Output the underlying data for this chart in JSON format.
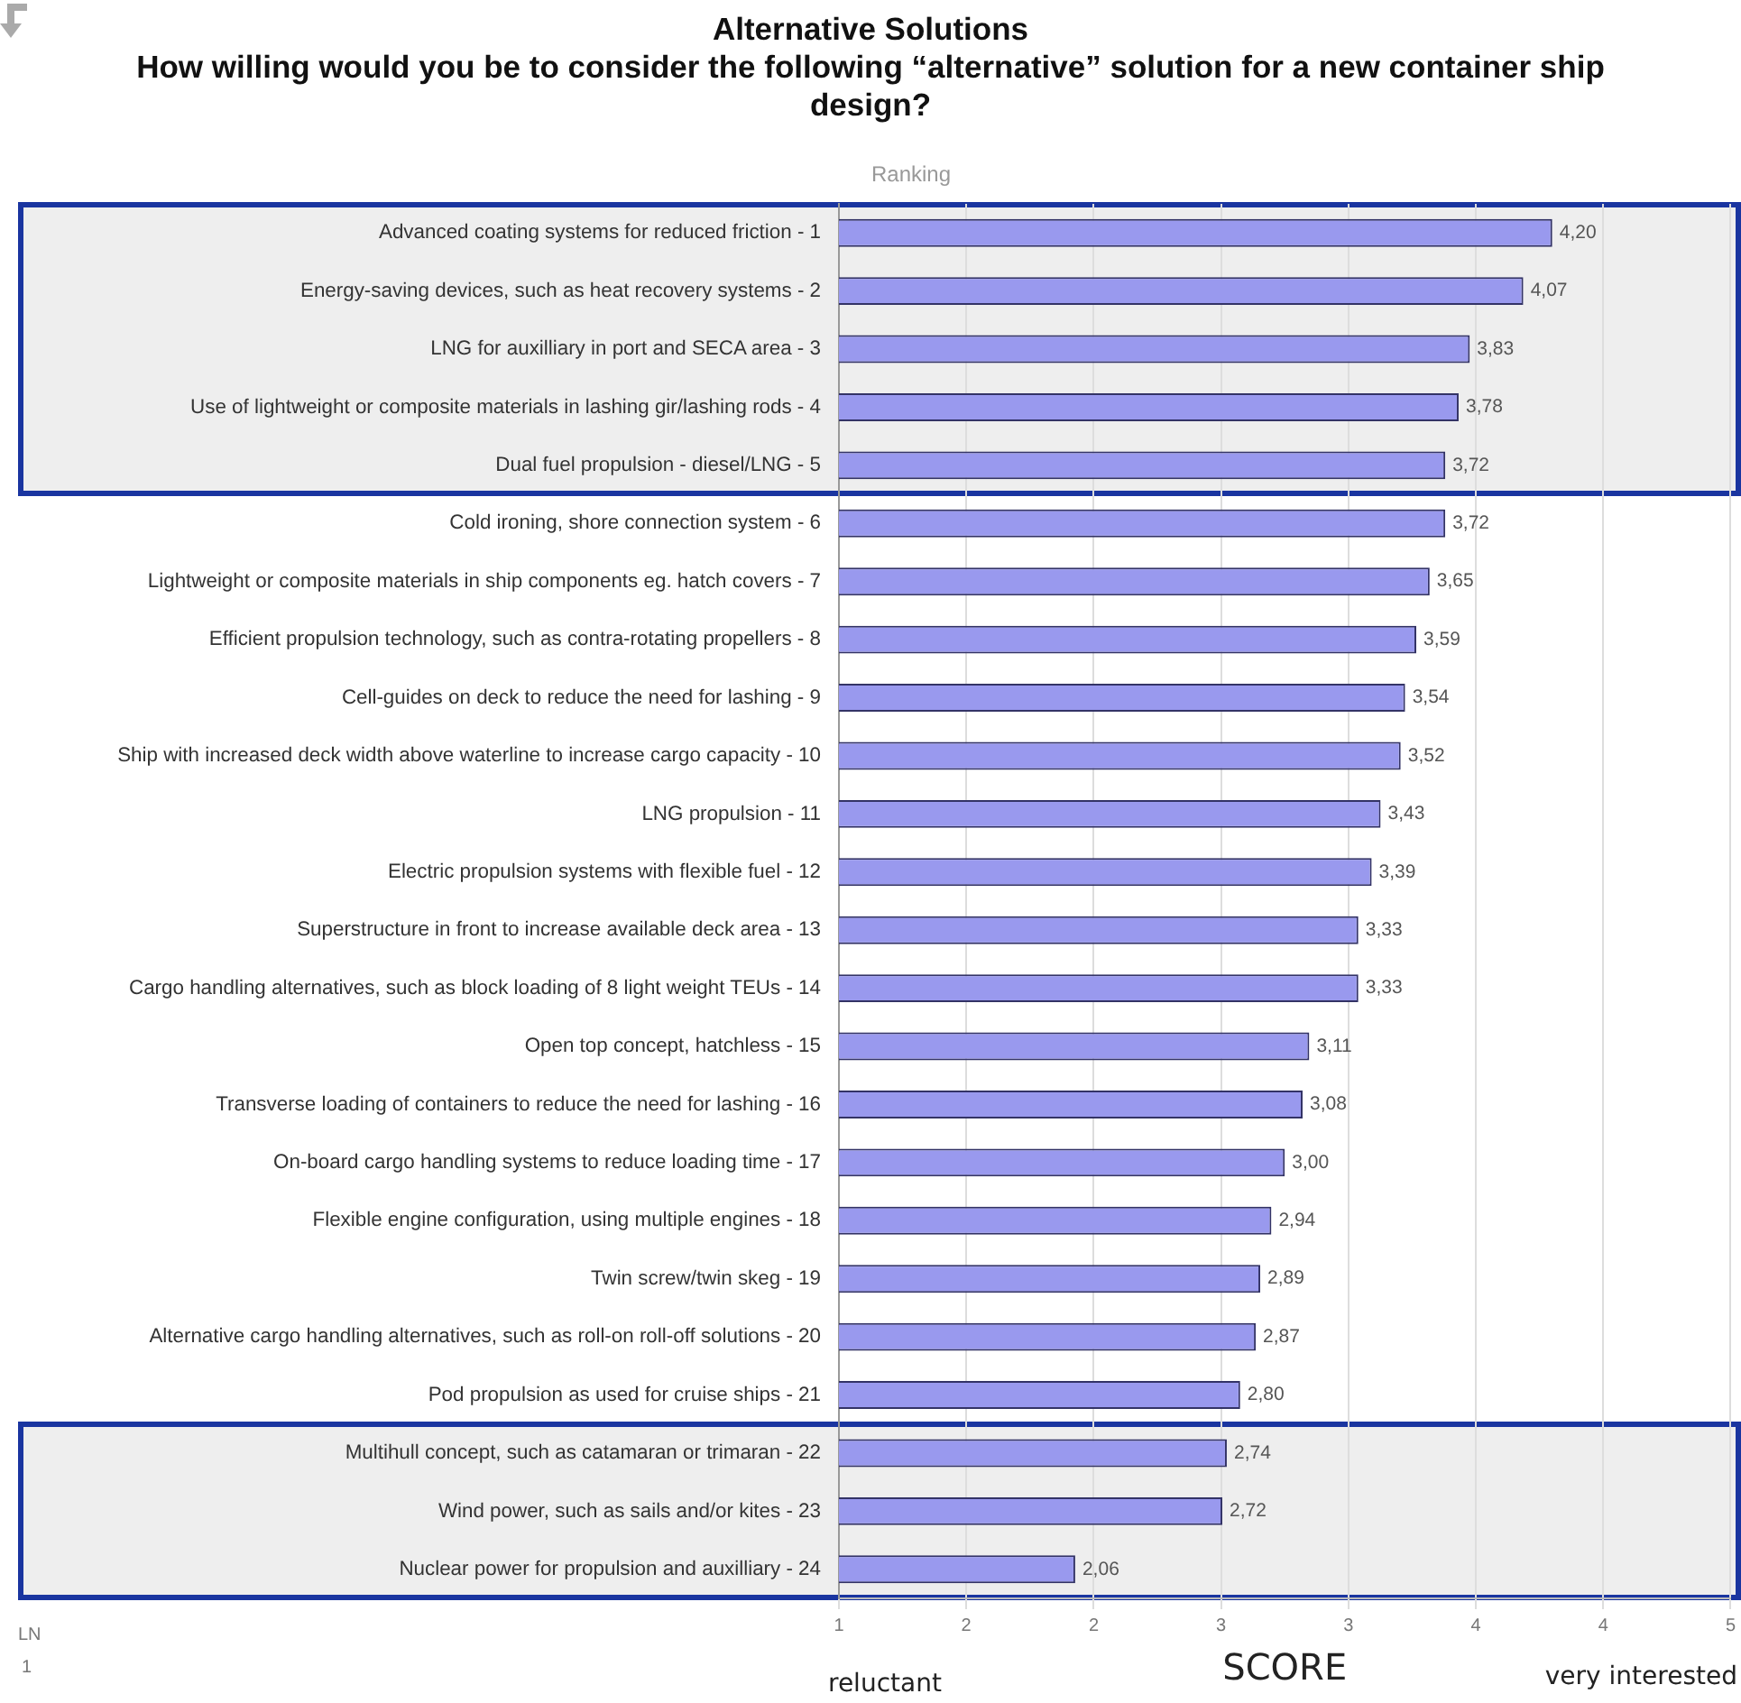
{
  "chart_data": {
    "type": "bar",
    "orientation": "horizontal",
    "title": "Alternative Solutions",
    "subtitle": "How willing would you be to consider the following “alternative” solution for a new container ship design?",
    "xlabel": "SCORE",
    "categories": [
      "Advanced coating systems for reduced friction - 1",
      "Energy-saving devices, such as heat recovery systems - 2",
      "LNG for auxilliary in port and SECA area - 3",
      "Use of lightweight or composite materials in lashing gir/lashing rods - 4",
      "Dual fuel propulsion - diesel/LNG - 5",
      "Cold ironing, shore connection system - 6",
      "Lightweight or composite materials in ship components eg. hatch covers - 7",
      "Efficient propulsion technology, such as contra-rotating propellers - 8",
      "Cell-guides on deck to reduce the need for lashing - 9",
      "Ship with increased deck width above waterline to increase cargo capacity - 10",
      "LNG propulsion - 11",
      "Electric propulsion systems with flexible fuel - 12",
      "Superstructure in front to increase available deck area - 13",
      "Cargo handling alternatives, such as block loading of 8 light weight TEUs - 14",
      "Open top concept, hatchless - 15",
      "Transverse loading of containers to reduce the need for lashing - 16",
      "On-board cargo handling systems to reduce loading time - 17",
      "Flexible engine configuration, using multiple engines - 18",
      "Twin screw/twin skeg - 19",
      "Alternative cargo handling alternatives, such as roll-on roll-off solutions - 20",
      "Pod propulsion as used for cruise ships - 21",
      "Multihull concept, such as catamaran or trimaran - 22",
      "Wind power, such as sails and/or kites - 23",
      "Nuclear power for propulsion and auxilliary - 24"
    ],
    "values": [
      4.2,
      4.07,
      3.83,
      3.78,
      3.72,
      3.72,
      3.65,
      3.59,
      3.54,
      3.52,
      3.43,
      3.39,
      3.33,
      3.33,
      3.11,
      3.08,
      3.0,
      2.94,
      2.89,
      2.87,
      2.8,
      2.74,
      2.72,
      2.06
    ],
    "value_labels": [
      "4,20",
      "4,07",
      "3,83",
      "3,78",
      "3,72",
      "3,72",
      "3,65",
      "3,59",
      "3,54",
      "3,52",
      "3,43",
      "3,39",
      "3,33",
      "3,33",
      "3,11",
      "3,08",
      "3,00",
      "2,94",
      "2,89",
      "2,87",
      "2,80",
      "2,74",
      "2,72",
      "2,06"
    ],
    "color": "#9999ee",
    "xlim": [
      1,
      5
    ],
    "xticks": [
      1,
      {
        "value": 1.571,
        "label": "2"
      },
      {
        "value": 2.143,
        "label": "2"
      },
      {
        "value": 2.714,
        "label": "3"
      },
      {
        "value": 3.286,
        "label": "3"
      },
      {
        "value": 3.857,
        "label": "4"
      },
      {
        "value": 4.429,
        "label": "4"
      },
      5
    ],
    "grid": "x",
    "annotations": [
      "Ranking",
      "reluctant",
      "very interested",
      "LN",
      "1"
    ]
  }
}
